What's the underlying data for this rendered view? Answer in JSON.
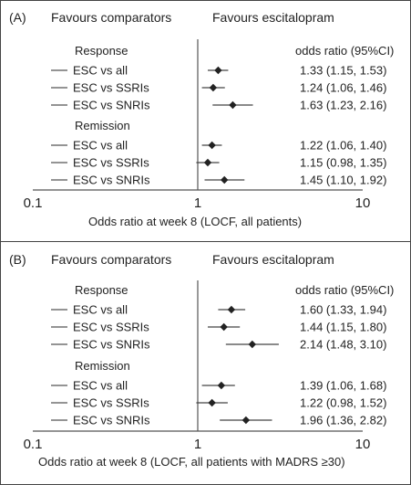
{
  "chart_data": [
    {
      "type": "forest",
      "panel_label": "(A)",
      "left_header": "Favours comparators",
      "right_header": "Favours escitalopram",
      "or_header": "odds ratio (95%CI)",
      "xlabel": "Odds ratio at week 8 (LOCF, all patients)",
      "x_scale": "log",
      "xlim": [
        0.1,
        10
      ],
      "ticks": [
        {
          "value": 0.1,
          "label": "0.1"
        },
        {
          "value": 1,
          "label": "1"
        },
        {
          "value": 10,
          "label": "10"
        }
      ],
      "groups": [
        {
          "title": "Response",
          "rows": [
            {
              "label": "ESC vs all",
              "or": 1.33,
              "lo": 1.15,
              "hi": 1.53,
              "text": "1.33 (1.15, 1.53)"
            },
            {
              "label": "ESC vs SSRIs",
              "or": 1.24,
              "lo": 1.06,
              "hi": 1.46,
              "text": "1.24 (1.06, 1.46)"
            },
            {
              "label": "ESC vs SNRIs",
              "or": 1.63,
              "lo": 1.23,
              "hi": 2.16,
              "text": "1.63 (1.23, 2.16)"
            }
          ]
        },
        {
          "title": "Remission",
          "rows": [
            {
              "label": "ESC vs all",
              "or": 1.22,
              "lo": 1.06,
              "hi": 1.4,
              "text": "1.22 (1.06, 1.40)"
            },
            {
              "label": "ESC vs SSRIs",
              "or": 1.15,
              "lo": 0.98,
              "hi": 1.35,
              "text": "1.15 (0.98, 1.35)"
            },
            {
              "label": "ESC vs SNRIs",
              "or": 1.45,
              "lo": 1.1,
              "hi": 1.92,
              "text": "1.45 (1.10, 1.92)"
            }
          ]
        }
      ]
    },
    {
      "type": "forest",
      "panel_label": "(B)",
      "left_header": "Favours comparators",
      "right_header": "Favours escitalopram",
      "or_header": "odds ratio (95%CI)",
      "xlabel": "Odds ratio at week 8 (LOCF, all patients with MADRS  ≥30)",
      "x_scale": "log",
      "xlim": [
        0.1,
        10
      ],
      "ticks": [
        {
          "value": 0.1,
          "label": "0.1"
        },
        {
          "value": 1,
          "label": "1"
        },
        {
          "value": 10,
          "label": "10"
        }
      ],
      "groups": [
        {
          "title": "Response",
          "rows": [
            {
              "label": "ESC vs all",
              "or": 1.6,
              "lo": 1.33,
              "hi": 1.94,
              "text": "1.60 (1.33, 1.94)"
            },
            {
              "label": "ESC vs SSRIs",
              "or": 1.44,
              "lo": 1.15,
              "hi": 1.8,
              "text": "1.44 (1.15, 1.80)"
            },
            {
              "label": "ESC vs SNRIs",
              "or": 2.14,
              "lo": 1.48,
              "hi": 3.1,
              "text": "2.14 (1.48, 3.10)"
            }
          ]
        },
        {
          "title": "Remission",
          "rows": [
            {
              "label": "ESC vs all",
              "or": 1.39,
              "lo": 1.06,
              "hi": 1.68,
              "text": "1.39 (1.06, 1.68)"
            },
            {
              "label": "ESC vs SSRIs",
              "or": 1.22,
              "lo": 0.98,
              "hi": 1.52,
              "text": "1.22 (0.98, 1.52)"
            },
            {
              "label": "ESC vs SNRIs",
              "or": 1.96,
              "lo": 1.36,
              "hi": 2.82,
              "text": "1.96 (1.36, 2.82)"
            }
          ]
        }
      ]
    }
  ]
}
